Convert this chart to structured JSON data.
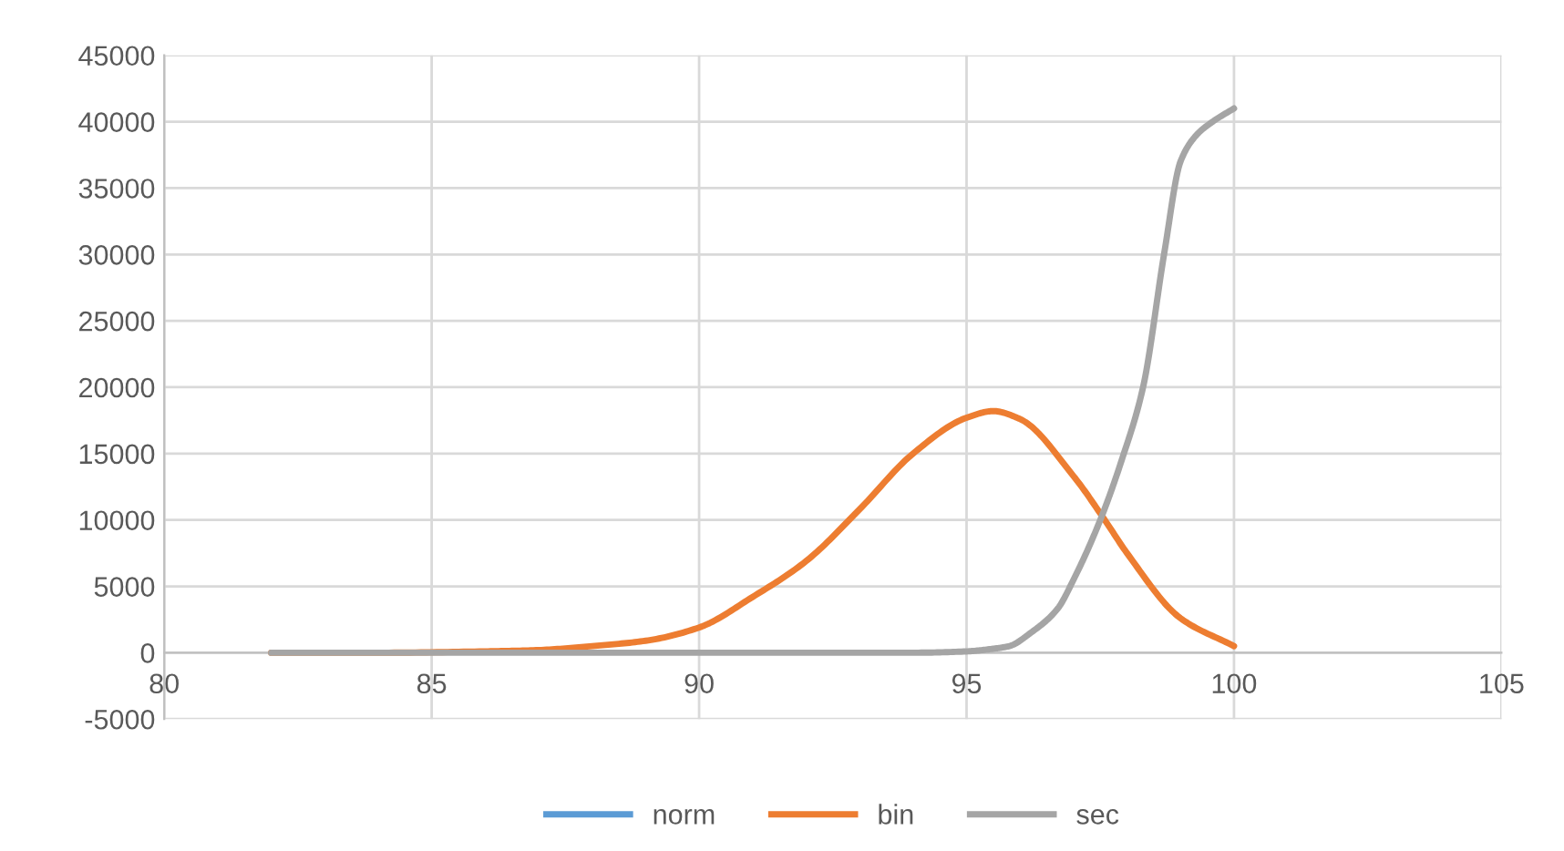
{
  "chart_data": {
    "type": "line",
    "xlim": [
      80,
      105
    ],
    "xticks": [
      80,
      85,
      90,
      95,
      100,
      105
    ],
    "ylim": [
      -5000,
      45000
    ],
    "yticks": [
      -5000,
      0,
      5000,
      10000,
      15000,
      20000,
      25000,
      30000,
      35000,
      40000,
      45000
    ],
    "grid": true,
    "legend": "bottom",
    "marker": "none",
    "line_style": "solid",
    "series": [
      {
        "name": "norm",
        "color": "#5b9bd5"
      },
      {
        "name": "bin",
        "color": "#ed7d31",
        "x": [
          82,
          84,
          86,
          87,
          88,
          89,
          90,
          91,
          92,
          93,
          94,
          95,
          95.5,
          96,
          97,
          97.6,
          98,
          99,
          100
        ],
        "values": [
          0,
          0,
          100,
          200,
          500,
          900,
          1900,
          4200,
          6900,
          10800,
          15000,
          17700,
          18200,
          17600,
          13300,
          9900,
          7500,
          2600,
          500
        ]
      },
      {
        "name": "sec",
        "color": "#a5a5a5",
        "x": [
          82,
          86,
          90,
          93,
          94,
          95,
          95.5,
          95.8,
          96.2,
          96.7,
          97,
          97.5,
          97.9,
          98.3,
          98.7,
          99,
          99.3,
          99.6,
          100
        ],
        "values": [
          0,
          0,
          0,
          0,
          0,
          100,
          300,
          500,
          1500,
          3300,
          5500,
          10000,
          14500,
          20000,
          30200,
          37000,
          39000,
          40000,
          41000
        ]
      }
    ]
  }
}
